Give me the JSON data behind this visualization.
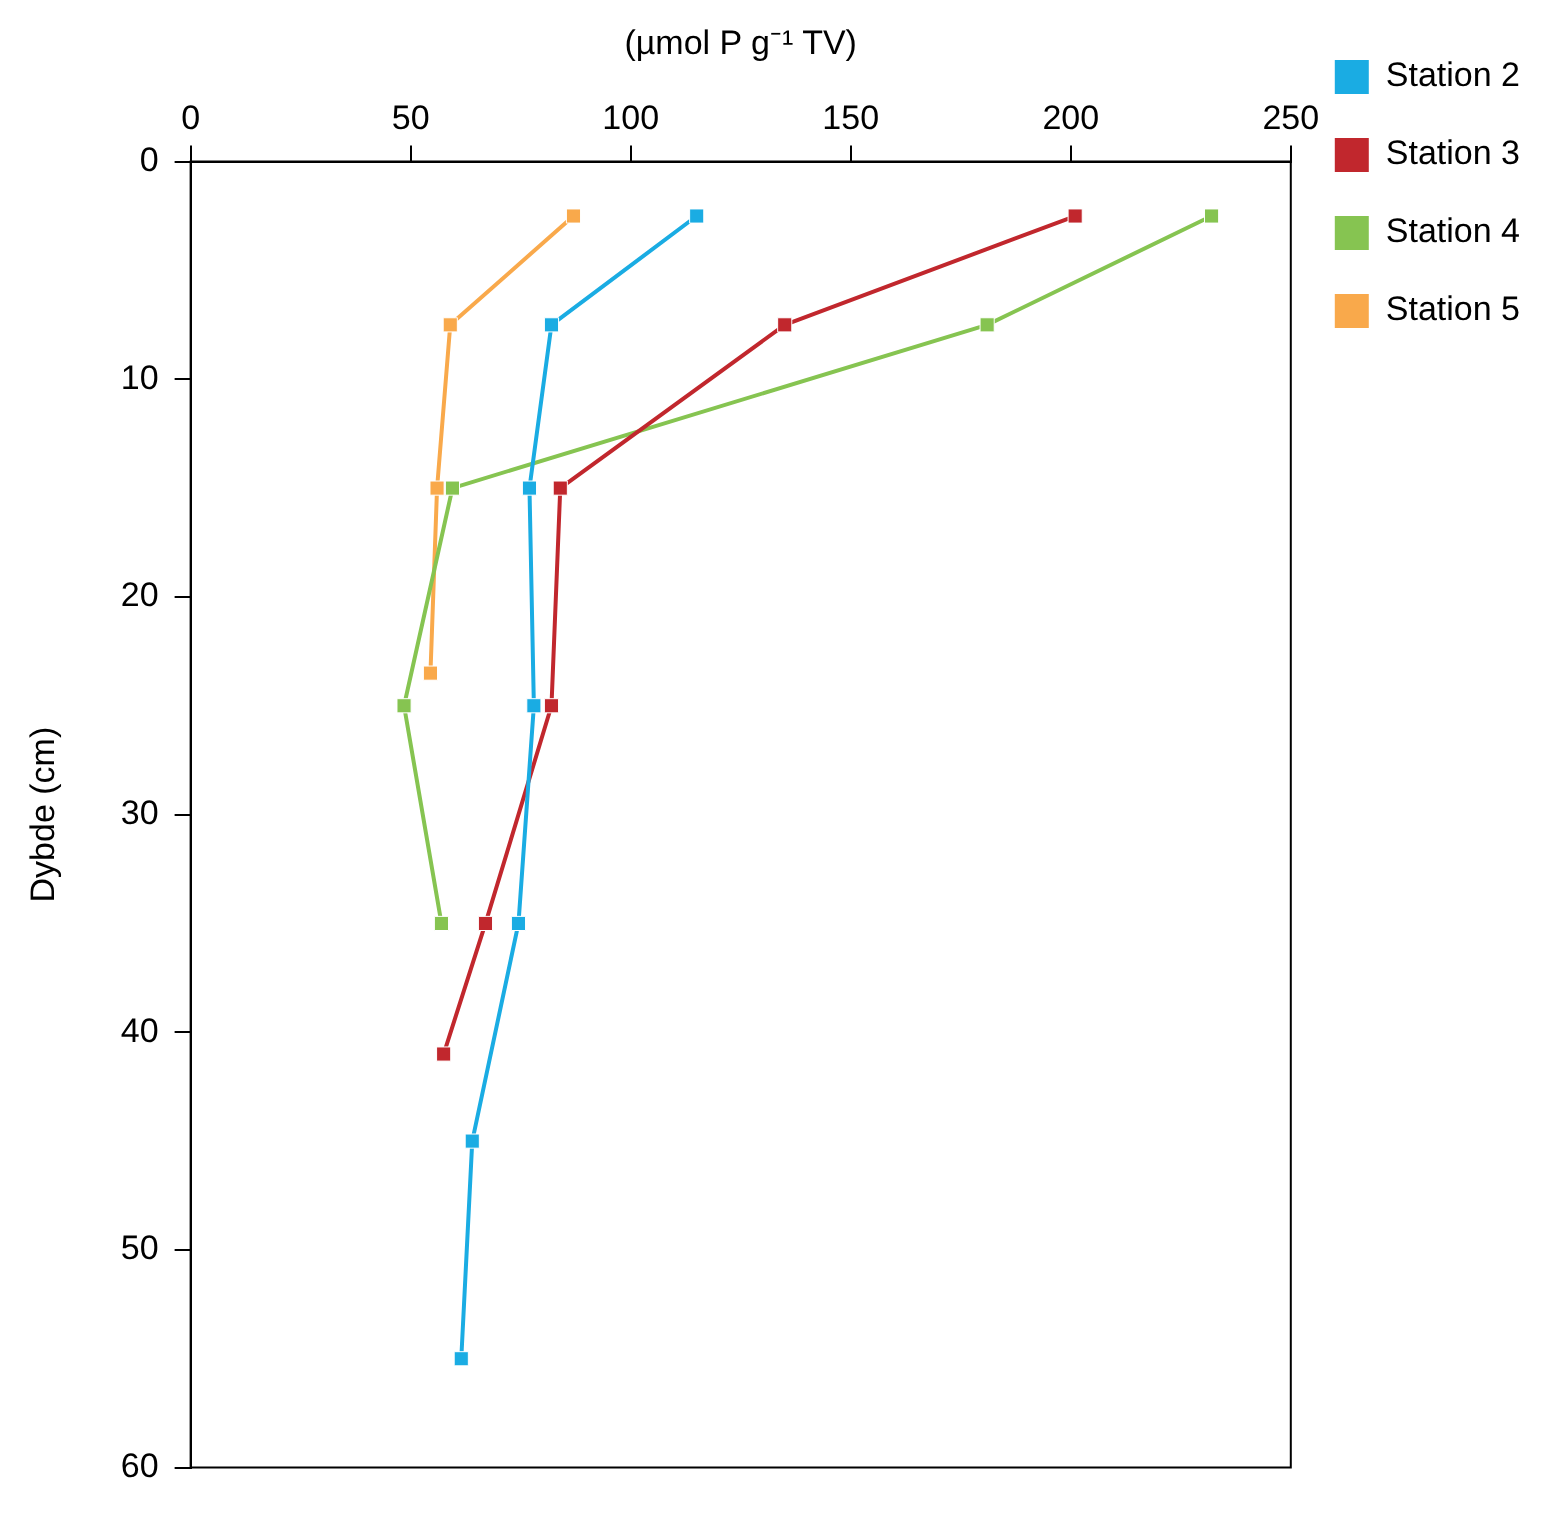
{
  "chart_data": {
    "type": "line",
    "xlabel": "(µmol P g⁻¹ TV)",
    "ylabel": "Dybde (cm)",
    "xlim": [
      0,
      250
    ],
    "xticks": [
      0,
      50,
      100,
      150,
      200,
      250
    ],
    "ylim": [
      60,
      0
    ],
    "yticks": [
      0,
      10,
      20,
      30,
      40,
      50,
      60
    ],
    "grid": false,
    "legend": "top right",
    "marker": "square",
    "line_style": "solid",
    "series": [
      {
        "name": "Station 2",
        "color": "#1aace3",
        "x": [
          115,
          82,
          77,
          78,
          74.5,
          64,
          61.5
        ],
        "values": [
          2.5,
          7.5,
          15,
          25,
          35,
          45,
          55
        ]
      },
      {
        "name": "Station 3",
        "color": "#c1272d",
        "x": [
          201,
          135,
          84,
          82,
          67,
          57.5
        ],
        "values": [
          2.5,
          7.5,
          15,
          25,
          35,
          41
        ]
      },
      {
        "name": "Station 4",
        "color": "#86c451",
        "x": [
          232,
          181,
          59.5,
          48.5,
          57
        ],
        "values": [
          2.5,
          7.5,
          15,
          25,
          35
        ]
      },
      {
        "name": "Station 5",
        "color": "#f9a94b",
        "x": [
          87,
          59,
          56,
          54.5
        ],
        "values": [
          2.5,
          7.5,
          15,
          23.5
        ]
      }
    ]
  }
}
